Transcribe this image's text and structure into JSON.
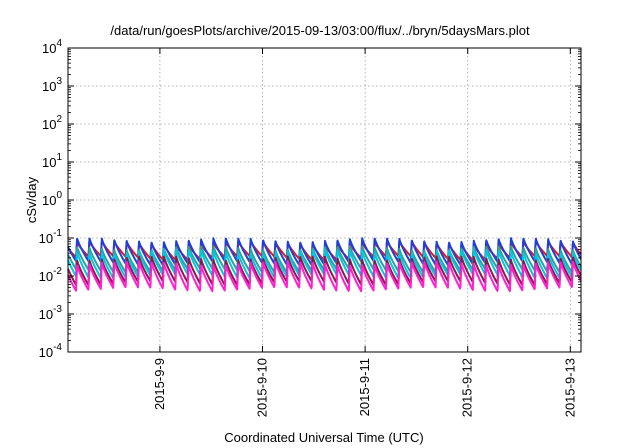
{
  "chart_data": {
    "type": "line",
    "title": "/data/run/goesPlots/archive/2015-09-13/03:00/flux/../bryn/5daysMars.plot",
    "xlabel": "Coordinated Universal Time (UTC)",
    "ylabel": "cSv/day",
    "y_scale": "log",
    "ylim": [
      0.0001,
      10000
    ],
    "y_ticks": [
      {
        "base": "10",
        "exp": "-4"
      },
      {
        "base": "10",
        "exp": "-3"
      },
      {
        "base": "10",
        "exp": "-2"
      },
      {
        "base": "10",
        "exp": "-1"
      },
      {
        "base": "10",
        "exp": "0"
      },
      {
        "base": "10",
        "exp": "1"
      },
      {
        "base": "10",
        "exp": "2"
      },
      {
        "base": "10",
        "exp": "3"
      },
      {
        "base": "10",
        "exp": "4"
      }
    ],
    "xlim": [
      "2015-09-08 02:30",
      "2015-09-13 02:30"
    ],
    "x_ticks": [
      "2015-9-9",
      "2015-9-10",
      "2015-9-11",
      "2015-9-12",
      "2015-9-13"
    ],
    "grid": true,
    "legend": "none",
    "pattern": {
      "description": "sawtooth: sharp rise then decay, repeating about every 2.9 hours",
      "period_hours": 2.9
    },
    "series": [
      {
        "color": "#e41a1c",
        "peak": 0.075,
        "trough": 0.03
      },
      {
        "color": "#1f3fd8",
        "peak": 0.09,
        "trough": 0.022
      },
      {
        "color": "#2aa2a2",
        "peak": 0.055,
        "trough": 0.014
      },
      {
        "color": "#00c8e0",
        "peak": 0.045,
        "trough": 0.01
      },
      {
        "color": "#8a1a4a",
        "peak": 0.03,
        "trough": 0.0065
      },
      {
        "color": "#ff20d0",
        "peak": 0.022,
        "trough": 0.0045
      }
    ]
  }
}
